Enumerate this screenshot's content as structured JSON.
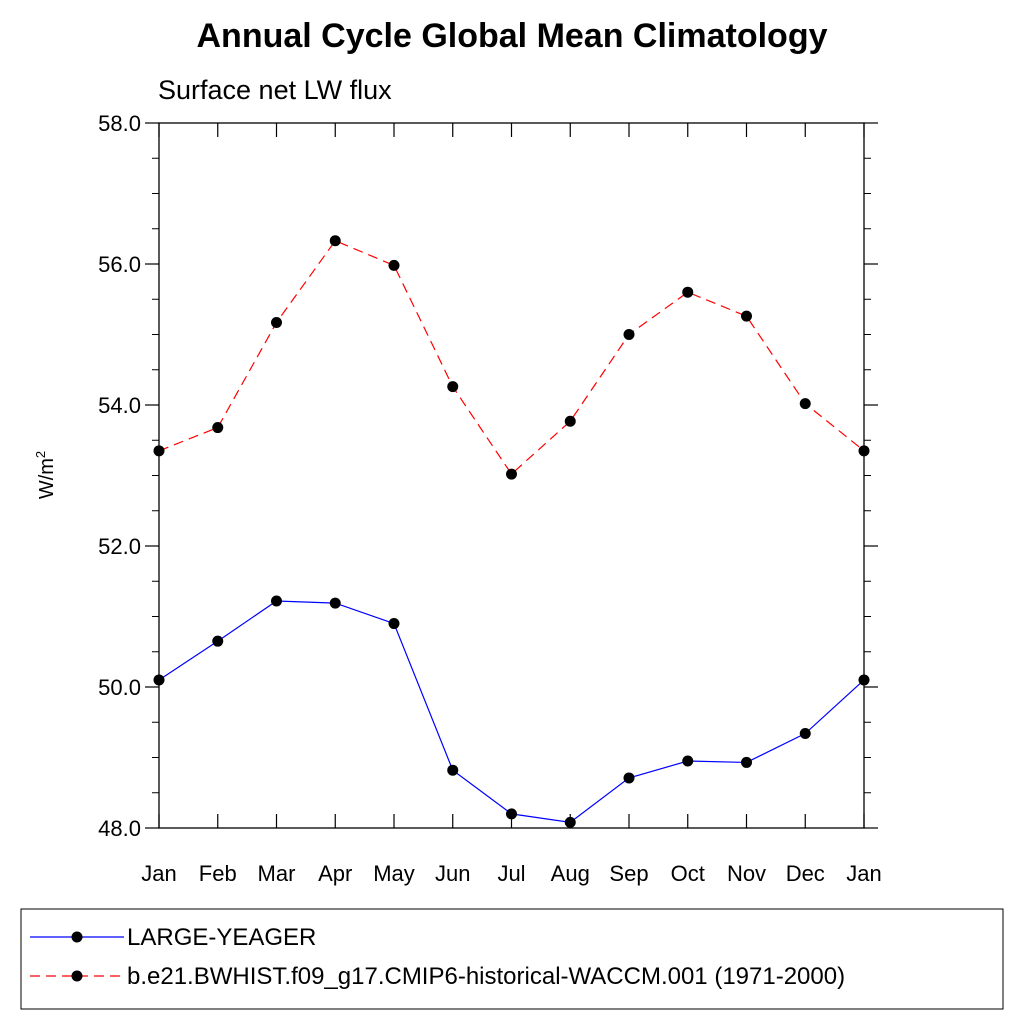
{
  "chart_data": {
    "type": "line",
    "title": "Annual Cycle Global Mean Climatology",
    "subtitle": "Surface net LW flux",
    "xlabel": "",
    "ylabel": "W/m",
    "ylabel_superscript": "2",
    "categories": [
      "Jan",
      "Feb",
      "Mar",
      "Apr",
      "May",
      "Jun",
      "Jul",
      "Aug",
      "Sep",
      "Oct",
      "Nov",
      "Dec",
      "Jan"
    ],
    "ylim": [
      48.0,
      58.0
    ],
    "yticks": [
      "48.0",
      "50.0",
      "52.0",
      "54.0",
      "56.0",
      "58.0"
    ],
    "ytick_values": [
      48.0,
      50.0,
      52.0,
      54.0,
      56.0,
      58.0
    ],
    "y_minor_step": 0.5,
    "grid": false,
    "legend_position": "bottom",
    "series": [
      {
        "name": "LARGE-YEAGER",
        "color": "#0000ff",
        "dash": "solid",
        "marker": "circle",
        "values": [
          50.1,
          50.65,
          51.22,
          51.19,
          50.9,
          48.82,
          48.2,
          48.08,
          48.71,
          48.95,
          48.93,
          49.34,
          50.1
        ]
      },
      {
        "name": "b.e21.BWHIST.f09_g17.CMIP6-historical-WACCM.001 (1971-2000)",
        "color": "#ff0000",
        "dash": "dashed",
        "marker": "circle",
        "values": [
          53.35,
          53.68,
          55.17,
          56.33,
          55.98,
          54.26,
          53.02,
          53.77,
          55.0,
          55.6,
          55.26,
          54.02,
          53.35
        ]
      }
    ]
  }
}
